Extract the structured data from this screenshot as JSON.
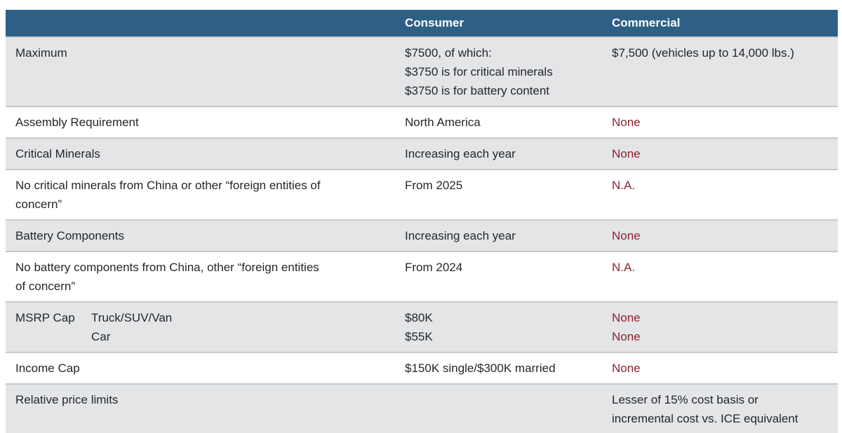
{
  "colors": {
    "header_bg": "#2e6086",
    "header_text": "#ffffff",
    "alt_row_bg": "#e3e5e7",
    "body_text": "#24272a",
    "negative_text": "#8e2132",
    "divider": "#c6c9cb"
  },
  "table": {
    "headers": [
      "",
      "Consumer",
      "Commercial"
    ],
    "rows": [
      {
        "label": "Maximum",
        "consumer_lines": [
          "$7500, of which:",
          "$3750 is for critical minerals",
          "$3750 is for battery content"
        ],
        "commercial_lines": [
          "$7,500 (vehicles up to 14,000 lbs.)"
        ]
      },
      {
        "label": "Assembly Requirement",
        "consumer_lines": [
          "North America"
        ],
        "commercial_lines": [
          "None"
        ]
      },
      {
        "label": "Critical Minerals",
        "consumer_lines": [
          "Increasing each year"
        ],
        "commercial_lines": [
          "None"
        ]
      },
      {
        "label_lines": [
          "No critical minerals from China or other “foreign entities of",
          "concern”"
        ],
        "consumer_lines": [
          "From 2025"
        ],
        "commercial_lines": [
          "N.A."
        ]
      },
      {
        "label": "Battery Components",
        "consumer_lines": [
          "Increasing each year"
        ],
        "commercial_lines": [
          "None"
        ]
      },
      {
        "label_lines": [
          "No battery components from China, other “foreign entities",
          "of concern”"
        ],
        "consumer_lines": [
          "From 2024"
        ],
        "commercial_lines": [
          "N.A."
        ]
      },
      {
        "label": "MSRP Cap",
        "sublabels": [
          "Truck/SUV/Van",
          "Car"
        ],
        "consumer_lines": [
          "$80K",
          "$55K"
        ],
        "commercial_lines": [
          "None",
          "None"
        ]
      },
      {
        "label": "Income Cap",
        "consumer_lines": [
          "$150K single/$300K married"
        ],
        "commercial_lines": [
          "None"
        ]
      },
      {
        "label": "Relative price limits",
        "consumer_lines": [],
        "commercial_lines": [
          "Lesser of 15% cost basis or",
          "incremental cost vs. ICE equivalent"
        ]
      }
    ]
  }
}
